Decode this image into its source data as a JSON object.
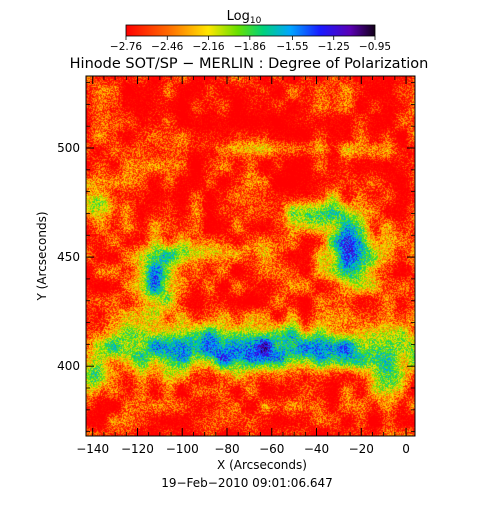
{
  "chart_data": {
    "type": "heatmap",
    "title": "Hinode SOT/SP − MERLIN : Degree of Polarization",
    "xlabel": "X (Arcseconds)",
    "ylabel": "Y (Arcseconds)",
    "xlim": [
      -143,
      4
    ],
    "ylim": [
      368,
      533
    ],
    "x_ticks": [
      -140,
      -120,
      -100,
      -80,
      -60,
      -40,
      -20,
      0
    ],
    "x_tick_labels": [
      "−140",
      "−120",
      "−100",
      "−80",
      "−60",
      "−40",
      "−20",
      "0"
    ],
    "y_ticks": [
      400,
      450,
      500
    ],
    "y_tick_labels": [
      "400",
      "450",
      "500"
    ],
    "colorbar": {
      "label_base": "Log",
      "label_sub": "10",
      "range": [
        -2.76,
        -0.95
      ],
      "ticks": [
        -2.76,
        -2.46,
        -2.16,
        -1.86,
        -1.55,
        -1.25,
        -0.95
      ],
      "tick_labels": [
        "−2.76",
        "−2.46",
        "−2.16",
        "−1.86",
        "−1.55",
        "−1.25",
        "−0.95"
      ],
      "colormap": "rainbow (red low → yellow → green → cyan → blue → black high)"
    },
    "date_label": "19−Feb−2010 09:01:06.647",
    "features": [
      {
        "description": "strong polarization network lane",
        "x": [
          -143,
          0
        ],
        "y_approx": [
          395,
          420
        ]
      },
      {
        "description": "strong polarization patch",
        "x": [
          -35,
          -15
        ],
        "y_approx": [
          440,
          470
        ]
      },
      {
        "description": "strong polarization patch",
        "x": [
          -143,
          -130
        ],
        "y_approx": [
          465,
          482
        ]
      },
      {
        "description": "strong polarization patch",
        "x": [
          -125,
          -108
        ],
        "y_approx": [
          425,
          455
        ]
      }
    ]
  }
}
